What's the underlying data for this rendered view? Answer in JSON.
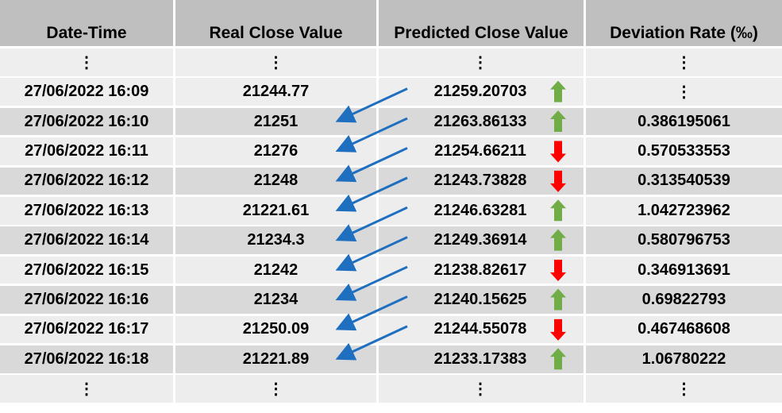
{
  "table": {
    "header": [
      "Date-Time",
      "Real Close Value",
      "Predicted Close Value",
      "Deviation Rate (‰)"
    ],
    "rows": [
      {
        "cells": [
          "⋮",
          "⋮",
          "⋮",
          "⋮"
        ]
      },
      {
        "cells": [
          "27/06/2022 16:09",
          "21244.77",
          "21259.20703",
          "⋮"
        ],
        "trend": "up"
      },
      {
        "cells": [
          "27/06/2022 16:10",
          "21251",
          "21263.86133",
          "0.386195061"
        ],
        "trend": "up"
      },
      {
        "cells": [
          "27/06/2022 16:11",
          "21276",
          "21254.66211",
          "0.570533553"
        ],
        "trend": "down"
      },
      {
        "cells": [
          "27/06/2022 16:12",
          "21248",
          "21243.73828",
          "0.313540539"
        ],
        "trend": "down"
      },
      {
        "cells": [
          "27/06/2022 16:13",
          "21221.61",
          "21246.63281",
          "1.042723962"
        ],
        "trend": "up"
      },
      {
        "cells": [
          "27/06/2022 16:14",
          "21234.3",
          "21249.36914",
          "0.580796753"
        ],
        "trend": "up"
      },
      {
        "cells": [
          "27/06/2022 16:15",
          "21242",
          "21238.82617",
          "0.346913691"
        ],
        "trend": "down"
      },
      {
        "cells": [
          "27/06/2022 16:16",
          "21234",
          "21240.15625",
          "0.69822793"
        ],
        "trend": "up"
      },
      {
        "cells": [
          "27/06/2022 16:17",
          "21250.09",
          "21244.55078",
          "0.467468608"
        ],
        "trend": "down"
      },
      {
        "cells": [
          "27/06/2022 16:18",
          "21221.89",
          "21233.17383",
          "1.06780222"
        ],
        "trend": "up"
      },
      {
        "cells": [
          "⋮",
          "⋮",
          "⋮",
          "⋮"
        ]
      }
    ]
  }
}
